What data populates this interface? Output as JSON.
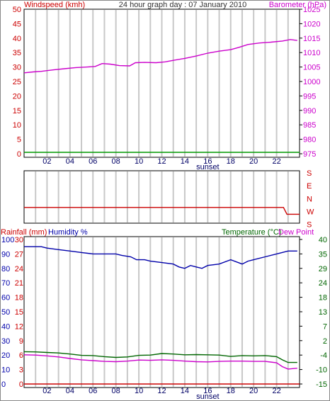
{
  "header": {
    "left_label": "Windspeed (kmh)",
    "title": "24 hour graph day : 07 January 2010",
    "right_label": "Barometer (hPa)"
  },
  "lower_header": {
    "rainfall_label": "Rainfall (mm)",
    "humidity_label": "Humidity %",
    "temperature_label": "Temperature (°C)",
    "dewpoint_label": "Dew Point"
  },
  "colors": {
    "windspeed_axis": "#cc0000",
    "barometer": "#cc00cc",
    "rainfall_axis": "#cc0000",
    "humidity_axis": "#0000aa",
    "temperature": "#006600",
    "dewpoint": "#cc00cc",
    "humidity": "#0000aa",
    "wind_direction": "#cc0000",
    "windspeed_line": "#009900",
    "rain_line": "#cc0000",
    "grid": "#c8c8c8"
  },
  "chart_data": [
    {
      "type": "line",
      "name": "wind-barometer",
      "x_ticks": [
        "02",
        "04",
        "06",
        "08",
        "10",
        "12",
        "14",
        "16",
        "18",
        "20",
        "22"
      ],
      "x_annotation": "sunset",
      "x_annotation_at": 16,
      "x_range": [
        0,
        24
      ],
      "left_axis": {
        "label": "Windspeed (kmh)",
        "ticks": [
          0,
          5,
          10,
          15,
          20,
          25,
          30,
          35,
          40,
          45,
          50
        ],
        "range": [
          0,
          50
        ]
      },
      "right_axis": {
        "label": "Barometer (hPa)",
        "ticks": [
          975,
          980,
          985,
          990,
          995,
          1000,
          1005,
          1010,
          1015,
          1020,
          1025
        ],
        "range": [
          975,
          1025
        ]
      },
      "series": [
        {
          "axis": "left",
          "color_key": "windspeed_line",
          "points": [
            [
              0,
              0.5
            ],
            [
              24,
              0.5
            ]
          ]
        },
        {
          "axis": "right",
          "color_key": "barometer",
          "points": [
            [
              0,
              1003
            ],
            [
              0.8,
              1003.3
            ],
            [
              1.5,
              1003.5
            ],
            [
              2.5,
              1004
            ],
            [
              3.5,
              1004.4
            ],
            [
              4.5,
              1004.8
            ],
            [
              5.5,
              1005
            ],
            [
              6.2,
              1005.2
            ],
            [
              6.8,
              1006.2
            ],
            [
              7.5,
              1006
            ],
            [
              8.3,
              1005.5
            ],
            [
              9.2,
              1005.4
            ],
            [
              9.7,
              1006.5
            ],
            [
              10.5,
              1006.6
            ],
            [
              11.5,
              1006.5
            ],
            [
              12.3,
              1006.8
            ],
            [
              13,
              1007.3
            ],
            [
              14,
              1008
            ],
            [
              15,
              1008.8
            ],
            [
              16,
              1009.8
            ],
            [
              17,
              1010.5
            ],
            [
              18,
              1011
            ],
            [
              18.7,
              1011.8
            ],
            [
              19.5,
              1012.8
            ],
            [
              20.5,
              1013.3
            ],
            [
              21.5,
              1013.6
            ],
            [
              22.5,
              1014
            ],
            [
              23.2,
              1014.5
            ],
            [
              23.8,
              1014.2
            ]
          ]
        }
      ]
    },
    {
      "type": "line",
      "name": "wind-direction",
      "x_range": [
        0,
        24
      ],
      "right_labels": [
        "S",
        "E",
        "N",
        "W",
        "S"
      ],
      "series": [
        {
          "color_key": "wind_direction",
          "points": [
            [
              0,
              0.7
            ],
            [
              22.6,
              0.7
            ],
            [
              22.9,
              0.83
            ],
            [
              24,
              0.83
            ]
          ]
        }
      ]
    },
    {
      "type": "line",
      "name": "rain-humidity-temperature",
      "x_ticks": [
        "02",
        "04",
        "06",
        "08",
        "10",
        "12",
        "14",
        "16",
        "18",
        "20",
        "22"
      ],
      "x_annotation": "sunset",
      "x_annotation_at": 16,
      "x_range": [
        0,
        24
      ],
      "rainfall_axis": {
        "label": "Rainfall (mm)",
        "ticks": [
          0,
          3,
          6,
          9,
          12,
          15,
          18,
          21,
          24,
          27,
          30
        ],
        "range": [
          0,
          30
        ]
      },
      "humidity_axis": {
        "label": "Humidity %",
        "ticks": [
          0,
          10,
          20,
          30,
          40,
          50,
          60,
          70,
          80,
          90,
          100
        ],
        "range": [
          0,
          100
        ]
      },
      "temperature_axis": {
        "label": "Temperature (°C)",
        "ticks": [
          -15,
          -10,
          -4,
          2,
          7,
          13,
          18,
          24,
          29,
          35,
          40
        ],
        "range": [
          -15,
          40
        ]
      },
      "series": [
        {
          "name": "Humidity %",
          "axis": "humidity",
          "color_key": "humidity",
          "points": [
            [
              0,
              95
            ],
            [
              1.5,
              95
            ],
            [
              2,
              94
            ],
            [
              3,
              93
            ],
            [
              4,
              92
            ],
            [
              5,
              91
            ],
            [
              6,
              90
            ],
            [
              7,
              90
            ],
            [
              8,
              90
            ],
            [
              8.5,
              89
            ],
            [
              9.3,
              88
            ],
            [
              9.8,
              86
            ],
            [
              10.5,
              86
            ],
            [
              11,
              85
            ],
            [
              12,
              84
            ],
            [
              13,
              83
            ],
            [
              13.5,
              81
            ],
            [
              14,
              80
            ],
            [
              14.5,
              82
            ],
            [
              15,
              81
            ],
            [
              15.5,
              80
            ],
            [
              16,
              82
            ],
            [
              17,
              83
            ],
            [
              18,
              86
            ],
            [
              19,
              83
            ],
            [
              19.5,
              85
            ],
            [
              20,
              86
            ],
            [
              21,
              88
            ],
            [
              22,
              90
            ],
            [
              23,
              92
            ],
            [
              23.8,
              92
            ]
          ]
        },
        {
          "name": "Temperature (°C)",
          "axis": "temperature",
          "color_key": "temperature",
          "points": [
            [
              0,
              -2.7
            ],
            [
              1,
              -2.8
            ],
            [
              2,
              -3.0
            ],
            [
              3,
              -3.2
            ],
            [
              4,
              -3.6
            ],
            [
              5,
              -4.1
            ],
            [
              6,
              -4.2
            ],
            [
              7,
              -4.6
            ],
            [
              8,
              -4.9
            ],
            [
              9,
              -4.7
            ],
            [
              10,
              -4.1
            ],
            [
              11,
              -4.0
            ],
            [
              12,
              -3.4
            ],
            [
              13,
              -3.6
            ],
            [
              14,
              -3.9
            ],
            [
              15,
              -3.8
            ],
            [
              16,
              -3.9
            ],
            [
              17,
              -4.0
            ],
            [
              18,
              -4.5
            ],
            [
              19,
              -4.2
            ],
            [
              20,
              -4.3
            ],
            [
              21,
              -4.2
            ],
            [
              22,
              -4.6
            ],
            [
              22.5,
              -5.8
            ],
            [
              23,
              -6.8
            ],
            [
              23.8,
              -6.8
            ]
          ]
        },
        {
          "name": "Dew Point",
          "axis": "temperature",
          "color_key": "dewpoint",
          "points": [
            [
              0,
              -3.9
            ],
            [
              1,
              -4.0
            ],
            [
              2,
              -4.3
            ],
            [
              3,
              -4.7
            ],
            [
              4,
              -5.3
            ],
            [
              5,
              -5.8
            ],
            [
              6,
              -6.1
            ],
            [
              7,
              -6.4
            ],
            [
              8,
              -6.5
            ],
            [
              9,
              -6.3
            ],
            [
              10,
              -5.9
            ],
            [
              11,
              -6.0
            ],
            [
              12,
              -5.8
            ],
            [
              13,
              -6.0
            ],
            [
              14,
              -6.3
            ],
            [
              15,
              -6.5
            ],
            [
              16,
              -6.6
            ],
            [
              17,
              -6.4
            ],
            [
              18,
              -6.3
            ],
            [
              19,
              -6.3
            ],
            [
              20,
              -6.4
            ],
            [
              21,
              -6.4
            ],
            [
              22,
              -6.9
            ],
            [
              22.5,
              -8.4
            ],
            [
              23,
              -9.3
            ],
            [
              23.8,
              -9.0
            ]
          ]
        },
        {
          "name": "Rainfall (mm)",
          "axis": "rainfall",
          "color_key": "rain_line",
          "points": [
            [
              0,
              0
            ],
            [
              24,
              0
            ]
          ]
        }
      ]
    }
  ]
}
